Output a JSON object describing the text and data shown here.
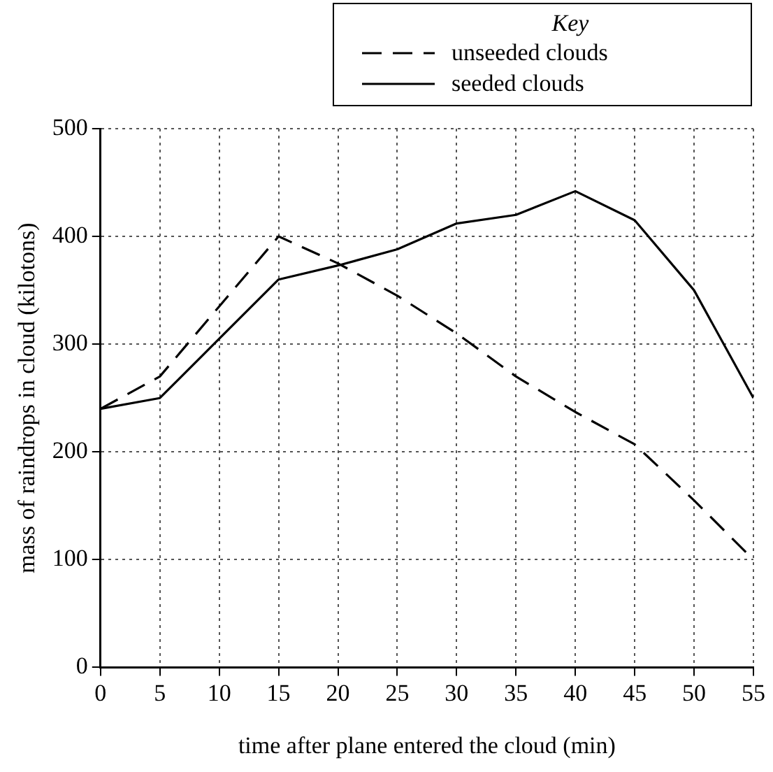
{
  "chart_data": {
    "type": "line",
    "xlabel": "time after plane entered the cloud (min)",
    "ylabel": "mass of raindrops in cloud (kilotons)",
    "legend_title": "Key",
    "x": [
      0,
      5,
      10,
      15,
      20,
      25,
      30,
      35,
      40,
      45,
      50,
      55
    ],
    "series": [
      {
        "name": "unseeded clouds",
        "color": "#000000",
        "line_style": "dashed",
        "values": [
          240,
          270,
          335,
          400,
          375,
          345,
          310,
          270,
          237,
          207,
          155,
          100
        ]
      },
      {
        "name": "seeded clouds",
        "color": "#000000",
        "line_style": "solid",
        "values": [
          240,
          250,
          305,
          360,
          373,
          388,
          412,
          420,
          442,
          415,
          350,
          250
        ]
      }
    ],
    "xlim": [
      0,
      55
    ],
    "xticks": [
      0,
      5,
      10,
      15,
      20,
      25,
      30,
      35,
      40,
      45,
      50,
      55
    ],
    "ylim": [
      0,
      500
    ],
    "yticks": [
      0,
      100,
      200,
      300,
      400,
      500
    ],
    "grid": true,
    "legend": "top right",
    "marker": "none"
  }
}
